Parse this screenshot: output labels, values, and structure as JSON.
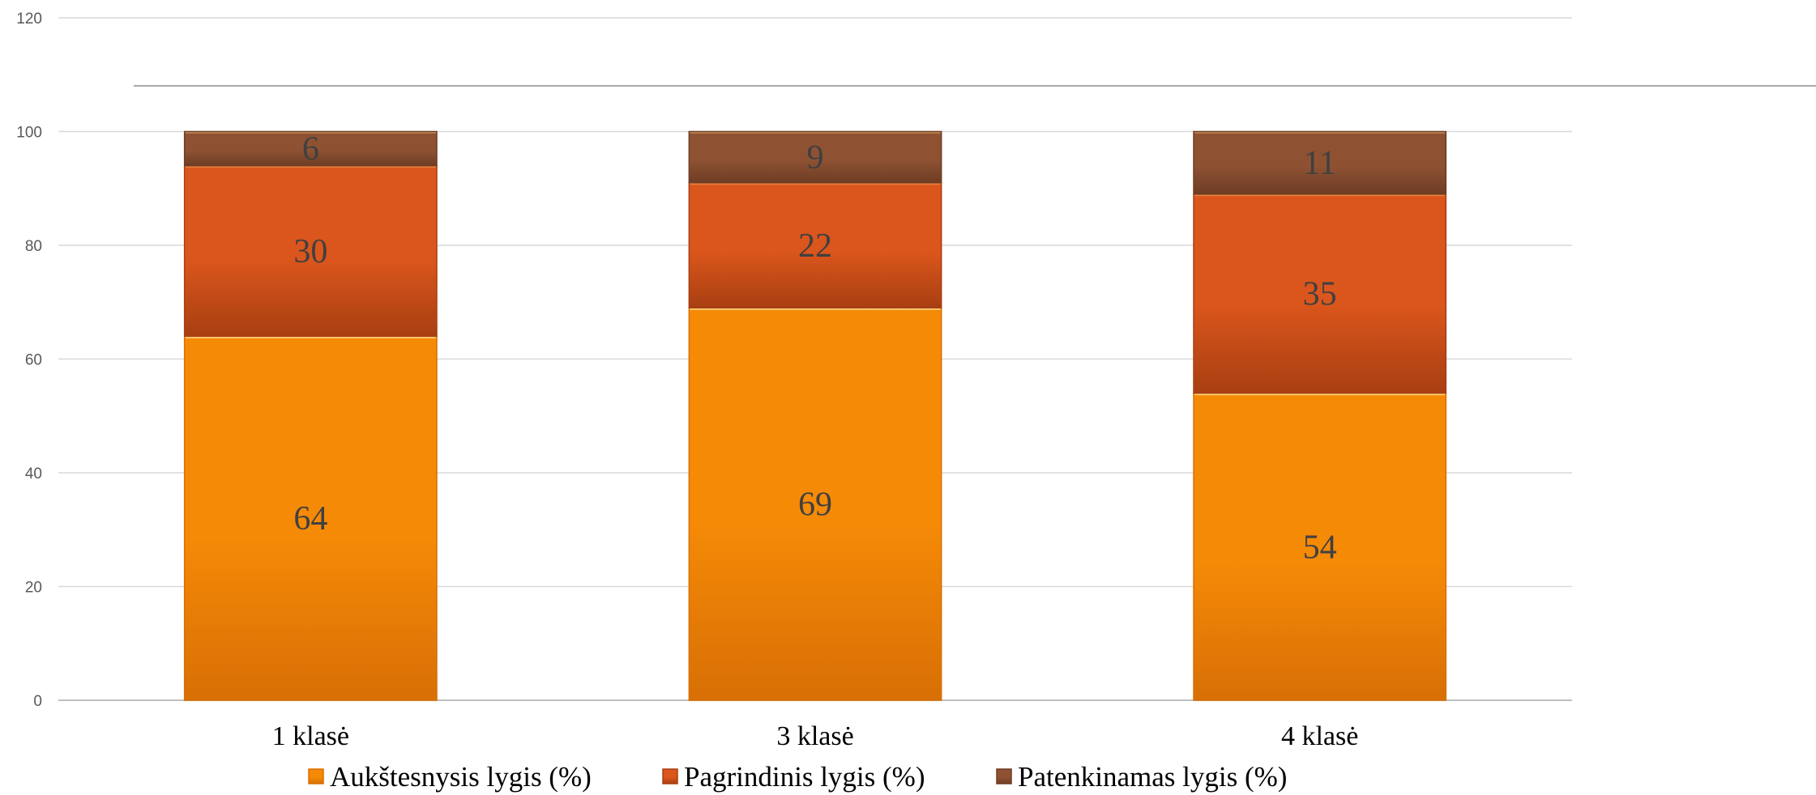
{
  "chart_data": {
    "type": "bar",
    "stacked": true,
    "categories": [
      "1 klasė",
      "3 klasė",
      "4 klasė"
    ],
    "series": [
      {
        "name": "Aukštesnysis lygis (%)",
        "values": [
          64,
          69,
          54
        ],
        "color": "#F58A07",
        "color_dark": "#D86F05"
      },
      {
        "name": "Pagrindinis lygis (%)",
        "values": [
          30,
          22,
          35
        ],
        "color": "#DB561C",
        "color_dark": "#A83F12"
      },
      {
        "name": "Patenkinamas lygis (%)",
        "values": [
          6,
          9,
          11
        ],
        "color": "#8E5233",
        "color_dark": "#6E3D24"
      }
    ],
    "ylim": [
      0,
      120
    ],
    "yticks": [
      0,
      20,
      40,
      60,
      80,
      100,
      120
    ],
    "grid": true,
    "legend_position": "bottom",
    "title": "",
    "xlabel": "",
    "ylabel": ""
  }
}
